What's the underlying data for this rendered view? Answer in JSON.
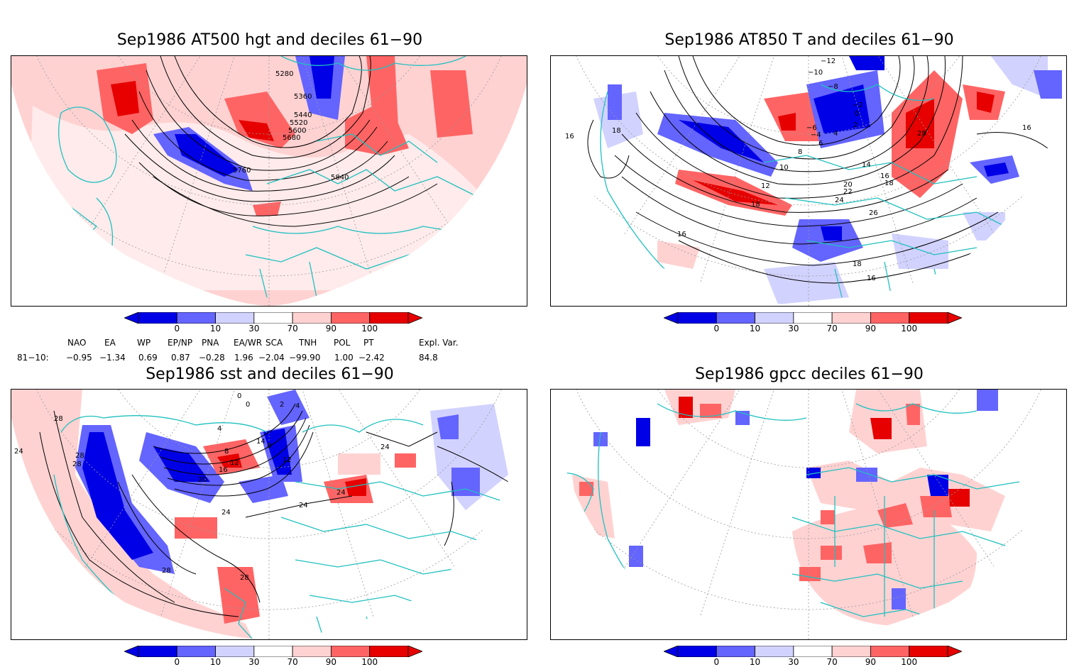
{
  "panels": [
    {
      "title": "Sep1986 AT500 hgt and deciles 61−90",
      "contour_labels": [
        "5280",
        "5360",
        "5440",
        "5520",
        "5600",
        "5680",
        "5760",
        "5840"
      ]
    },
    {
      "title": "Sep1986 AT850 T and deciles 61−90",
      "contour_labels": [
        "−12",
        "−10",
        "−8",
        "−6",
        "−4",
        "−2",
        "0",
        "2",
        "4",
        "6",
        "8",
        "10",
        "12",
        "14",
        "16",
        "18",
        "20",
        "22",
        "24",
        "26",
        "28",
        "16",
        "18",
        "16",
        "18",
        "18",
        "16",
        "16"
      ]
    },
    {
      "title": "Sep1986 sst and deciles 61−90",
      "contour_labels": [
        "0",
        "0",
        "2",
        "4",
        "4",
        "8",
        "8",
        "12",
        "14",
        "16",
        "20",
        "24",
        "24",
        "24",
        "28",
        "28",
        "28",
        "28",
        "24",
        "28",
        "12",
        "24"
      ]
    },
    {
      "title": "Sep1986 gpcc deciles 61−90",
      "contour_labels": []
    }
  ],
  "colorbar": {
    "ticks": [
      "0",
      "10",
      "30",
      "70",
      "90",
      "100"
    ],
    "colors": [
      "#0000e6",
      "#6464ff",
      "#d2d2ff",
      "#ffffff",
      "#ffd2d2",
      "#ff6464",
      "#e60000"
    ]
  },
  "indices": {
    "headers": [
      "NAO",
      "EA",
      "WP",
      "EP/NP",
      "PNA",
      "EA/WR",
      "SCA",
      "TNH",
      "POL",
      "PT",
      "Expl. Var."
    ],
    "row_label": "81−10:",
    "values": [
      "−0.95",
      "−1.34",
      "0.69",
      "0.87",
      "−0.28",
      "1.96",
      "−2.04",
      "−99.90",
      "1.00",
      "−2.42",
      "84.8"
    ]
  },
  "colors": {
    "coastline": "#20c0c0",
    "grid": "#999999",
    "frame": "#000000"
  }
}
